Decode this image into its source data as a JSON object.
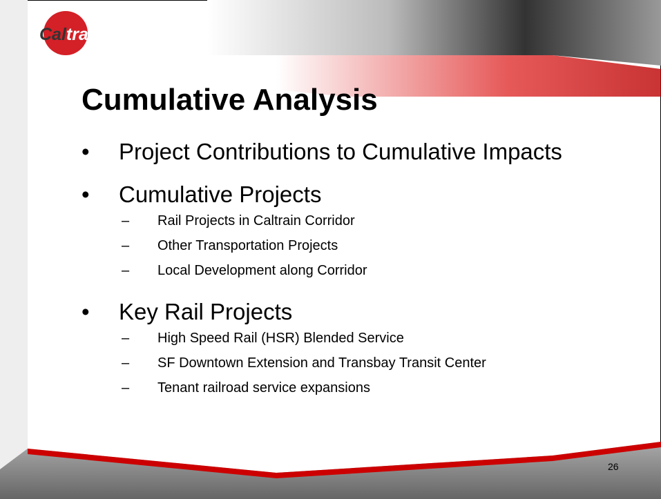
{
  "logo": {
    "part1": "Cal",
    "part2": "train"
  },
  "title": "Cumulative Analysis",
  "bullets": [
    {
      "text": "Project Contributions to Cumulative Impacts",
      "sub": []
    },
    {
      "text": "Cumulative Projects",
      "sub": [
        "Rail Projects in Caltrain Corridor",
        "Other Transportation Projects",
        "Local Development along Corridor"
      ]
    },
    {
      "text": "Key Rail Projects",
      "sub": [
        "High Speed Rail (HSR) Blended Service",
        "SF Downtown Extension and Transbay Transit Center",
        "Tenant railroad service expansions"
      ]
    }
  ],
  "bullet_symbol": "•",
  "sub_symbol": "–",
  "page_number": "26"
}
